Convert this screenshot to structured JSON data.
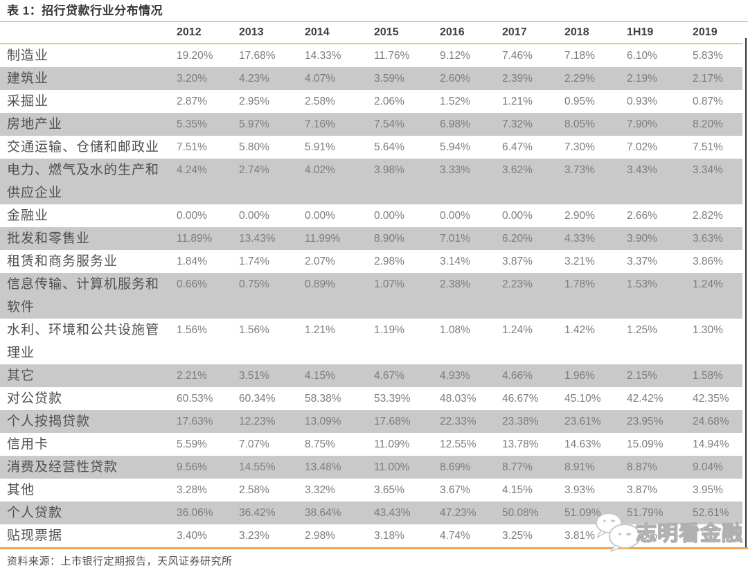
{
  "title": {
    "text": "表 1：招行贷款行业分布情况"
  },
  "table": {
    "columns": [
      "2012",
      "2013",
      "2014",
      "2015",
      "2016",
      "2017",
      "2018",
      "1H19",
      "2019"
    ],
    "rows": [
      {
        "label": "制造业",
        "values": [
          "19.20%",
          "17.68%",
          "14.33%",
          "11.76%",
          "9.12%",
          "7.46%",
          "7.18%",
          "6.10%",
          "5.83%"
        ]
      },
      {
        "label": "建筑业",
        "values": [
          "3.20%",
          "4.23%",
          "4.07%",
          "3.59%",
          "2.60%",
          "2.39%",
          "2.29%",
          "2.19%",
          "2.17%"
        ]
      },
      {
        "label": "采掘业",
        "values": [
          "2.87%",
          "2.95%",
          "2.58%",
          "2.06%",
          "1.52%",
          "1.21%",
          "0.95%",
          "0.93%",
          "0.87%"
        ]
      },
      {
        "label": "房地产业",
        "values": [
          "5.35%",
          "5.97%",
          "7.16%",
          "7.54%",
          "6.98%",
          "7.32%",
          "8.05%",
          "7.90%",
          "8.20%"
        ]
      },
      {
        "label": "交通运输、仓储和邮政业",
        "values": [
          "7.51%",
          "5.80%",
          "5.91%",
          "5.64%",
          "5.94%",
          "6.47%",
          "7.30%",
          "7.02%",
          "7.51%"
        ]
      },
      {
        "label": "电力、燃气及水的生产和供应企业",
        "values": [
          "4.24%",
          "2.74%",
          "4.02%",
          "3.98%",
          "3.33%",
          "3.62%",
          "3.73%",
          "3.43%",
          "3.34%"
        ]
      },
      {
        "label": "金融业",
        "values": [
          "0.00%",
          "0.00%",
          "0.00%",
          "0.00%",
          "0.00%",
          "0.00%",
          "2.90%",
          "2.66%",
          "2.82%"
        ]
      },
      {
        "label": "批发和零售业",
        "values": [
          "11.89%",
          "13.43%",
          "11.99%",
          "8.90%",
          "7.01%",
          "6.20%",
          "4.33%",
          "3.90%",
          "3.63%"
        ]
      },
      {
        "label": "租赁和商务服务业",
        "values": [
          "1.84%",
          "1.74%",
          "2.07%",
          "2.98%",
          "3.14%",
          "3.87%",
          "3.21%",
          "3.37%",
          "3.86%"
        ]
      },
      {
        "label": "信息传输、计算机服务和软件",
        "values": [
          "0.66%",
          "0.75%",
          "0.89%",
          "1.07%",
          "2.38%",
          "2.23%",
          "1.78%",
          "1.53%",
          "1.24%"
        ]
      },
      {
        "label": "水利、环境和公共设施管理业",
        "values": [
          "1.56%",
          "1.56%",
          "1.21%",
          "1.19%",
          "1.08%",
          "1.24%",
          "1.42%",
          "1.25%",
          "1.30%"
        ]
      },
      {
        "label": "其它",
        "values": [
          "2.21%",
          "3.51%",
          "4.15%",
          "4.67%",
          "4.93%",
          "4.66%",
          "1.96%",
          "2.15%",
          "1.58%"
        ]
      },
      {
        "label": "对公贷款",
        "values": [
          "60.53%",
          "60.34%",
          "58.38%",
          "53.39%",
          "48.03%",
          "46.67%",
          "45.10%",
          "42.42%",
          "42.35%"
        ]
      },
      {
        "label": "个人按揭贷款",
        "values": [
          "17.63%",
          "12.23%",
          "13.09%",
          "17.68%",
          "22.33%",
          "23.38%",
          "23.61%",
          "23.95%",
          "24.68%"
        ]
      },
      {
        "label": "信用卡",
        "values": [
          "5.59%",
          "7.07%",
          "8.75%",
          "11.09%",
          "12.55%",
          "13.78%",
          "14.63%",
          "15.09%",
          "14.94%"
        ]
      },
      {
        "label": "消费及经营性贷款",
        "values": [
          "9.56%",
          "14.55%",
          "13.48%",
          "11.00%",
          "8.69%",
          "8.77%",
          "8.91%",
          "8.87%",
          "9.04%"
        ]
      },
      {
        "label": "其他",
        "values": [
          "3.28%",
          "2.58%",
          "3.32%",
          "3.65%",
          "3.67%",
          "4.15%",
          "3.93%",
          "3.87%",
          "3.95%"
        ]
      },
      {
        "label": "个人贷款",
        "values": [
          "36.06%",
          "36.42%",
          "38.64%",
          "43.43%",
          "47.23%",
          "50.08%",
          "51.09%",
          "51.79%",
          "52.61%"
        ]
      },
      {
        "label": "贴现票据",
        "values": [
          "3.40%",
          "3.23%",
          "2.98%",
          "3.18%",
          "4.74%",
          "3.25%",
          "3.81%",
          "5.30%",
          ""
        ]
      }
    ]
  },
  "footer": {
    "source": "资料来源：上市银行定期报告，天风证券研究所"
  },
  "watermark": {
    "text": "志明看金融",
    "icon": "wechat-chat-bubbles-icon"
  },
  "colors": {
    "accent_tan": "#EBC494",
    "accent_orange": "#EFA24F",
    "row_stripe_gray": "#C9C9C9",
    "label_text": "#4F4F4F",
    "value_text": "#7C7C7C"
  }
}
